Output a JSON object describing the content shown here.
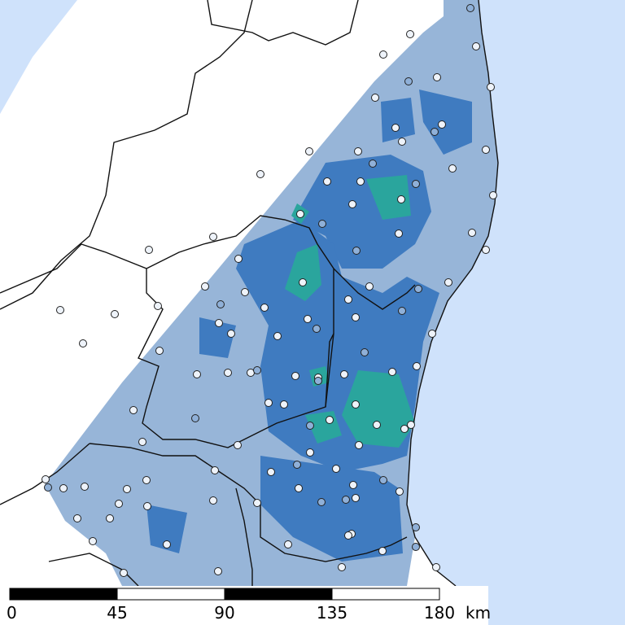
{
  "scale_bar": {
    "ticks": [
      0,
      45,
      90,
      135,
      180
    ],
    "unit": "km"
  }
}
